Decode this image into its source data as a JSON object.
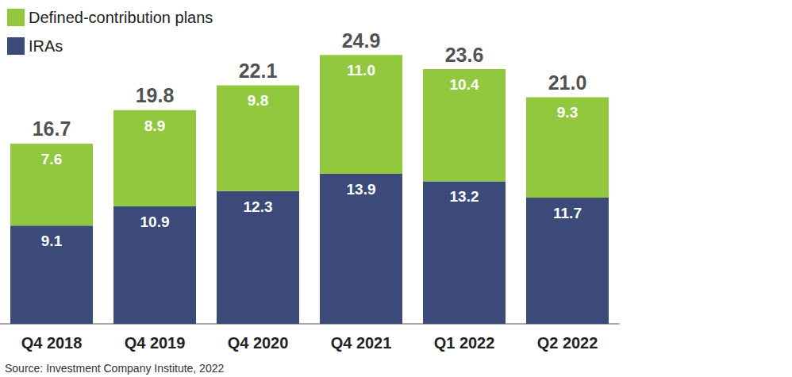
{
  "chart_data": {
    "type": "bar",
    "stacked": true,
    "data_labels": true,
    "tick_labels": "x",
    "legend": "top-left",
    "source": "Source: Investment Company Institute, 2022",
    "categories": [
      "Q4 2018",
      "Q4 2019",
      "Q4 2020",
      "Q4 2021",
      "Q1 2022",
      "Q2 2022"
    ],
    "ylim": [
      0,
      25
    ],
    "totals": [
      16.7,
      19.8,
      22.1,
      24.9,
      23.6,
      21.0
    ],
    "total_labels": [
      "16.7",
      "19.8",
      "22.1",
      "24.9",
      "23.6",
      "21.0"
    ],
    "series": [
      {
        "name": "IRAs",
        "color": "#3b4a78",
        "values": [
          9.1,
          10.9,
          12.3,
          13.9,
          13.2,
          11.7
        ],
        "value_labels": [
          "9.1",
          "10.9",
          "12.3",
          "13.9",
          "13.2",
          "11.7"
        ]
      },
      {
        "name": "Defined-contribution plans",
        "color": "#92c83e",
        "values": [
          7.6,
          8.9,
          9.8,
          11.0,
          10.4,
          9.3
        ],
        "value_labels": [
          "7.6",
          "8.9",
          "9.8",
          "11.0",
          "10.4",
          "9.3"
        ]
      }
    ]
  }
}
